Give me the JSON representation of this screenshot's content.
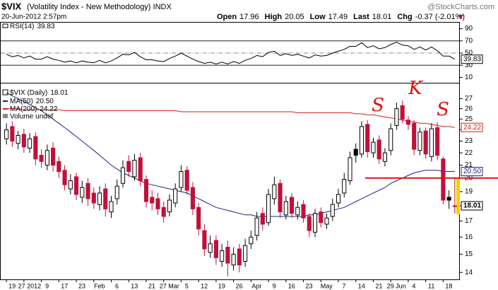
{
  "header": {
    "symbol": "$VIX",
    "name": "(Volatility Index - New Methodology) INDX",
    "date": "20-Jun-2012 2:57pm",
    "source": "@StockCharts.com",
    "quote": [
      {
        "label": "Open",
        "value": "17.96"
      },
      {
        "label": "High",
        "value": "20.05"
      },
      {
        "label": "Low",
        "value": "17.49"
      },
      {
        "label": "Last",
        "value": "18.01"
      },
      {
        "label": "Chg",
        "value": "-0.37 (-2.01%)"
      }
    ]
  },
  "chart_data": {
    "type": "candlestick",
    "name": "$VIX (Daily)",
    "value_label": "18.01",
    "volume_label": "Volume undef",
    "log_scale": true,
    "ylim": [
      13.6,
      28.6
    ],
    "yticks": [
      14,
      15,
      16,
      17,
      18,
      19,
      20,
      21,
      22,
      23,
      24,
      25,
      26,
      27
    ],
    "up_color": "#000000",
    "down_color": "#c0103a",
    "categories": [
      "19",
      null,
      null,
      "27 2012",
      null,
      null,
      "9",
      null,
      null,
      "17",
      null,
      null,
      "23",
      null,
      null,
      "Feb",
      null,
      null,
      "6",
      null,
      null,
      "13",
      null,
      null,
      "21",
      null,
      null,
      "27 Mar",
      null,
      null,
      "5",
      null,
      null,
      "12",
      null,
      null,
      "19",
      null,
      null,
      "26",
      null,
      null,
      "Apr",
      null,
      null,
      "9",
      null,
      null,
      "16",
      null,
      null,
      "23",
      null,
      null,
      "May",
      null,
      null,
      "7",
      null,
      null,
      "14",
      null,
      null,
      "21",
      null,
      null,
      "29 Jun",
      null,
      null,
      "4",
      null,
      null,
      "11",
      null,
      null,
      "18",
      null,
      null
    ],
    "open": [
      23.2,
      24.3,
      22.8,
      23.6,
      22.4,
      23.4,
      21.8,
      21.0,
      22.4,
      21.3,
      20.6,
      19.2,
      20.1,
      18.6,
      19.6,
      18.9,
      18.1,
      19.2,
      17.6,
      18.5,
      19.6,
      21.3,
      20.1,
      21.6,
      19.9,
      18.6,
      18.5,
      17.9,
      17.6,
      18.2,
      19.3,
      20.6,
      19.3,
      17.9,
      16.4,
      15.1,
      15.8,
      14.6,
      15.4,
      14.4,
      15.3,
      14.6,
      15.6,
      16.1,
      17.5,
      16.9,
      18.5,
      19.6,
      17.4,
      18.6,
      17.4,
      18.1,
      17.3,
      16.3,
      17.6,
      16.8,
      17.3,
      18.2,
      18.9,
      19.8,
      22.3,
      21.9,
      24.5,
      22.0,
      23.1,
      21.3,
      22.2,
      24.4,
      26.3,
      24.9,
      24.6,
      22.2,
      23.9,
      21.7,
      24.2,
      21.5,
      18.6,
      17.96
    ],
    "high": [
      24.6,
      24.8,
      23.9,
      24.1,
      23.7,
      23.8,
      22.3,
      22.7,
      22.9,
      21.7,
      21.0,
      20.3,
      20.4,
      19.8,
      20.0,
      19.3,
      19.4,
      19.6,
      18.7,
      19.9,
      21.4,
      21.8,
      21.9,
      22.0,
      20.2,
      19.1,
      18.9,
      18.3,
      18.8,
      19.6,
      21.0,
      20.9,
      19.7,
      18.2,
      16.8,
      16.1,
      16.1,
      15.6,
      15.8,
      15.4,
      15.6,
      15.9,
      16.4,
      17.6,
      17.9,
      19.2,
      20.1,
      19.9,
      18.7,
      18.9,
      18.3,
      18.4,
      17.5,
      17.8,
      17.9,
      17.5,
      18.5,
      19.2,
      20.4,
      22.1,
      22.8,
      24.8,
      24.9,
      23.3,
      23.5,
      22.4,
      24.6,
      26.6,
      26.8,
      25.3,
      24.9,
      24.2,
      24.2,
      24.6,
      24.7,
      21.7,
      19.1,
      20.05
    ],
    "low": [
      22.7,
      22.5,
      22.3,
      22.0,
      22.0,
      21.0,
      20.8,
      20.6,
      20.5,
      20.0,
      19.1,
      18.8,
      18.4,
      18.2,
      18.0,
      17.8,
      17.7,
      17.3,
      17.2,
      18.1,
      19.3,
      20.1,
      19.8,
      19.4,
      17.9,
      17.7,
      17.4,
      16.9,
      17.3,
      17.9,
      19.0,
      18.8,
      17.4,
      16.1,
      14.9,
      14.8,
      14.4,
      14.3,
      13.8,
      14.1,
      14.0,
      14.3,
      15.3,
      15.8,
      16.4,
      16.7,
      18.1,
      17.2,
      17.1,
      17.2,
      17.1,
      16.9,
      16.0,
      16.0,
      16.6,
      16.5,
      17.0,
      17.9,
      18.6,
      19.5,
      21.2,
      21.6,
      21.6,
      21.6,
      21.1,
      20.9,
      21.8,
      24.0,
      24.6,
      24.0,
      21.8,
      21.8,
      21.5,
      21.3,
      21.4,
      18.1,
      17.8,
      17.49
    ],
    "close": [
      24,
      23,
      23.5,
      22.5,
      23.2,
      21.5,
      21.3,
      22.2,
      21,
      20.5,
      19.5,
      19.8,
      18.8,
      19.3,
      18.5,
      18.2,
      18.9,
      17.8,
      18.3,
      19.4,
      20.8,
      20.5,
      21.4,
      19.8,
      18.3,
      18.2,
      17.8,
      17.3,
      18.4,
      19.2,
      20.5,
      19.1,
      17.8,
      16.5,
      15.3,
      15.6,
      14.8,
      15.2,
      14.5,
      15,
      14.4,
      15.5,
      16,
      17.2,
      16.8,
      18.8,
      19.5,
      17.6,
      18.3,
      17.5,
      17.9,
      17.2,
      16.4,
      17.5,
      16.9,
      17.2,
      18.1,
      18.8,
      19.9,
      21.6,
      21.8,
      24.3,
      22.1,
      22.9,
      21.5,
      22,
      24.1,
      26,
      25,
      24.5,
      22.3,
      23.8,
      21.9,
      24.1,
      21.8,
      18.4,
      18.4,
      18.01
    ],
    "series": [
      {
        "name": "MA(50)",
        "color": "#1a237e",
        "value_label": "20.50",
        "values": [
          27.6,
          27.3,
          27.0,
          26.7,
          26.4,
          26.1,
          25.8,
          25.4,
          25.0,
          24.6,
          24.2,
          23.8,
          23.4,
          23.0,
          22.6,
          22.2,
          21.8,
          21.4,
          21.0,
          20.7,
          20.4,
          20.2,
          20.0,
          19.8,
          19.6,
          19.5,
          19.4,
          19.3,
          19.2,
          19.1,
          19.0,
          18.9,
          18.7,
          18.5,
          18.3,
          18.1,
          17.9,
          17.8,
          17.7,
          17.6,
          17.5,
          17.4,
          17.4,
          17.3,
          17.3,
          17.3,
          17.3,
          17.3,
          17.3,
          17.3,
          17.3,
          17.3,
          17.4,
          17.4,
          17.5,
          17.6,
          17.7,
          17.8,
          17.9,
          18.1,
          18.3,
          18.5,
          18.7,
          18.9,
          19.1,
          19.3,
          19.6,
          19.8,
          20.0,
          20.2,
          20.4,
          20.5,
          20.6,
          20.6,
          20.6,
          20.5,
          20.5,
          20.5
        ]
      },
      {
        "name": "MA(200)",
        "color": "#d0201a",
        "value_label": "24.22",
        "values": [
          26.0,
          26.0,
          26.0,
          25.9,
          25.9,
          25.9,
          25.9,
          25.9,
          25.9,
          25.9,
          25.8,
          25.8,
          25.8,
          25.8,
          25.8,
          25.8,
          25.8,
          25.8,
          25.8,
          25.8,
          25.8,
          25.8,
          25.8,
          25.8,
          25.8,
          25.8,
          25.8,
          25.8,
          25.8,
          25.8,
          25.7,
          25.7,
          25.7,
          25.7,
          25.7,
          25.7,
          25.7,
          25.7,
          25.7,
          25.7,
          25.7,
          25.7,
          25.7,
          25.7,
          25.7,
          25.7,
          25.7,
          25.7,
          25.7,
          25.7,
          25.6,
          25.6,
          25.6,
          25.6,
          25.6,
          25.6,
          25.6,
          25.6,
          25.6,
          25.6,
          25.5,
          25.5,
          25.4,
          25.4,
          25.3,
          25.2,
          25.1,
          25.0,
          24.9,
          24.8,
          24.7,
          24.6,
          24.6,
          24.5,
          24.4,
          24.3,
          24.3,
          24.22
        ]
      }
    ],
    "hline": 20,
    "annotations": [
      "S",
      "K",
      "S"
    ],
    "rsi": {
      "name": "RSI(14)",
      "value_label": "39.83",
      "color": "#000000",
      "ylim": [
        0,
        100
      ],
      "yticks": [
        10,
        30,
        50,
        70,
        90
      ],
      "values": [
        48,
        44,
        46,
        42,
        45,
        40,
        40,
        44,
        40,
        38,
        35,
        37,
        34,
        37,
        35,
        34,
        38,
        34,
        37,
        42,
        48,
        47,
        51,
        44,
        39,
        39,
        37,
        36,
        41,
        45,
        50,
        45,
        40,
        36,
        33,
        35,
        32,
        35,
        32,
        36,
        33,
        38,
        41,
        46,
        44,
        51,
        53,
        46,
        49,
        46,
        48,
        45,
        42,
        47,
        45,
        46,
        50,
        53,
        56,
        61,
        61,
        67,
        59,
        62,
        57,
        59,
        64,
        68,
        63,
        62,
        56,
        60,
        55,
        60,
        54,
        45,
        45,
        39.83
      ]
    }
  }
}
